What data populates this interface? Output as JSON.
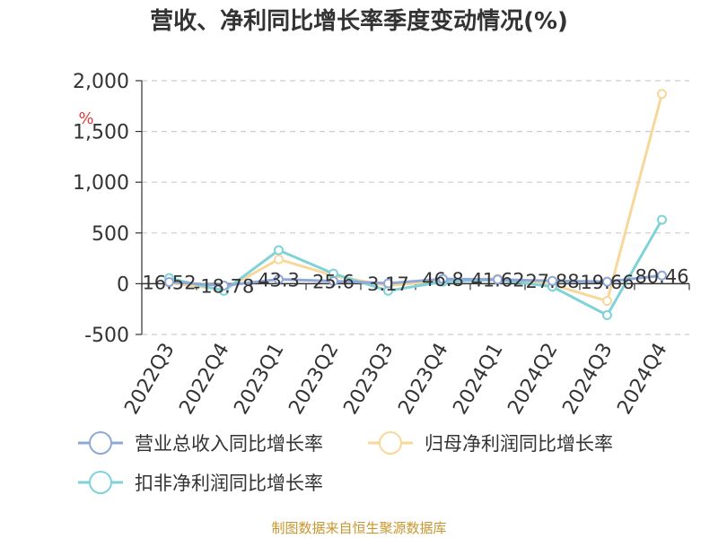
{
  "chart_data": {
    "type": "line",
    "title": "营收、净利同比增长率季度变动情况(%)",
    "unit": "%",
    "categories": [
      "2022Q3",
      "2022Q4",
      "2023Q1",
      "2023Q2",
      "2023Q3",
      "2023Q4",
      "2024Q1",
      "2024Q2",
      "2024Q3",
      "2024Q4"
    ],
    "ylim": [
      -500,
      2000
    ],
    "yticks": [
      "2,000",
      "1,500",
      "1,000",
      "500",
      "0",
      "-500"
    ],
    "grid": true,
    "legend_position": "bottom",
    "series": [
      {
        "name": "营业总收入同比增长率",
        "color": "#8fa8d8",
        "values": [
          16.52,
          -18.78,
          43.3,
          25.6,
          3.17,
          46.8,
          41.62,
          27.88,
          19.66,
          80.46
        ],
        "labels": [
          "16.52",
          "-18.78",
          "43.3",
          "25.6",
          "3.17",
          "46.8",
          "41.62",
          "27.88",
          "19.66",
          "80.46"
        ]
      },
      {
        "name": "归母净利润同比增长率",
        "color": "#f8d89a",
        "values": [
          10,
          -60,
          240,
          80,
          -20,
          30,
          50,
          -10,
          -170,
          1870
        ]
      },
      {
        "name": "扣非净利润同比增长率",
        "color": "#7fd3d8",
        "values": [
          55,
          -70,
          330,
          100,
          -70,
          20,
          40,
          -30,
          -310,
          630
        ]
      }
    ]
  },
  "source": "制图数据来自恒生聚源数据库"
}
